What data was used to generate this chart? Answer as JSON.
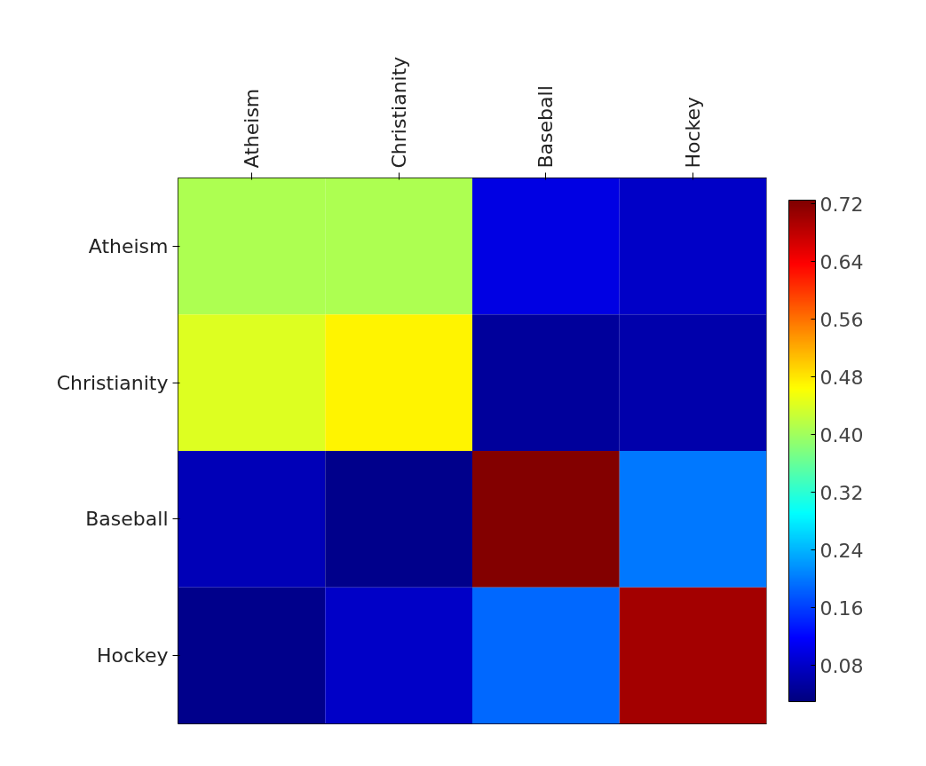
{
  "chart_data": {
    "type": "heatmap",
    "categories": [
      "Atheism",
      "Christianity",
      "Baseball",
      "Hockey"
    ],
    "y_categories": [
      "Atheism",
      "Christianity",
      "Baseball",
      "Hockey"
    ],
    "cells": [
      [
        0.41,
        0.41,
        0.1,
        0.08
      ],
      [
        0.44,
        0.47,
        0.05,
        0.06
      ],
      [
        0.07,
        0.04,
        0.72,
        0.2
      ],
      [
        0.04,
        0.08,
        0.19,
        0.7
      ]
    ],
    "clim": [
      0.03,
      0.725
    ],
    "cticks": [
      0.08,
      0.16,
      0.24,
      0.32,
      {
        "value": 0.4,
        "label": "0.40"
      },
      0.48,
      0.56,
      0.64,
      0.72
    ]
  }
}
